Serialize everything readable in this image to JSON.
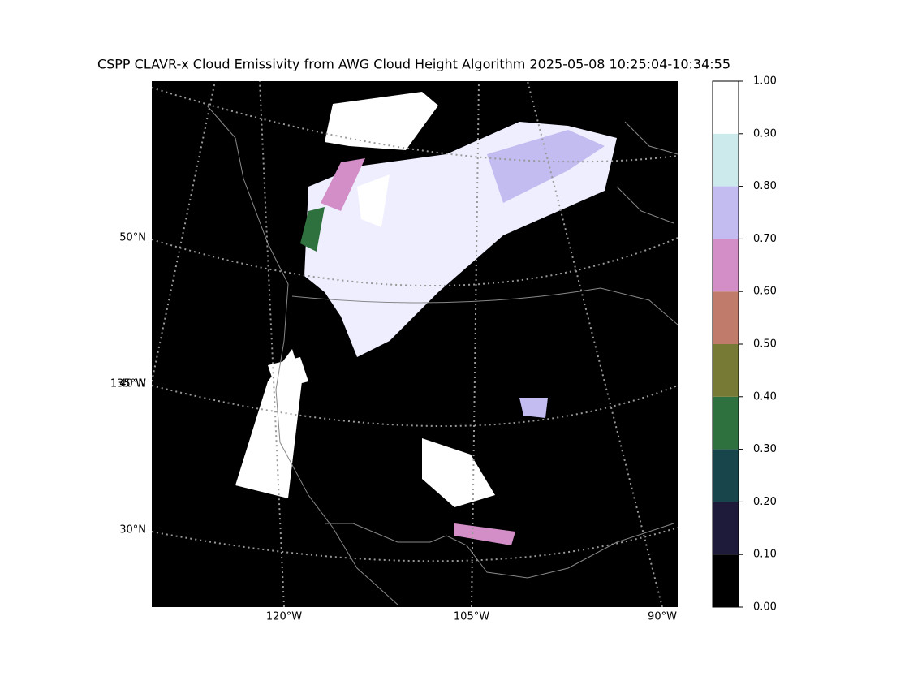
{
  "title": "CSPP CLAVR-x Cloud Emissivity from AWG Cloud Height Algorithm 2025-05-08 10:25:04-10:34:55",
  "map": {
    "lat_labels": [
      "50°N",
      "40°N",
      "30°N"
    ],
    "lon_labels": [
      "135°W",
      "120°W",
      "105°W",
      "90°W"
    ]
  },
  "colorbar": {
    "lim": [
      0,
      1
    ],
    "ticks": [
      {
        "value": 0,
        "label": "0.00"
      },
      {
        "value": 0.1,
        "label": "0.10"
      },
      {
        "value": 0.2,
        "label": "0.20"
      },
      {
        "value": 0.3,
        "label": "0.30"
      },
      {
        "value": 0.4,
        "label": "0.40"
      },
      {
        "value": 0.5,
        "label": "0.50"
      },
      {
        "value": 0.6,
        "label": "0.60"
      },
      {
        "value": 0.7,
        "label": "0.70"
      },
      {
        "value": 0.8,
        "label": "0.80"
      },
      {
        "value": 0.9,
        "label": "0.90"
      },
      {
        "value": 1,
        "label": "1.00"
      }
    ],
    "colors": [
      "#000000",
      "#1e1a3a",
      "#18444c",
      "#2e703e",
      "#767a34",
      "#c07b6a",
      "#d38ec8",
      "#c3bcf0",
      "#cce9ec",
      "#ffffff"
    ]
  }
}
